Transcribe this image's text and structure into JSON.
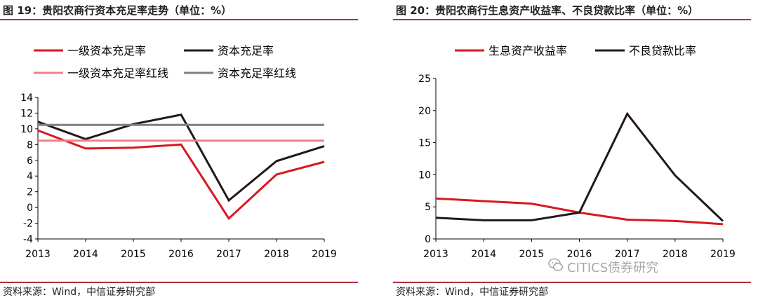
{
  "left": {
    "title": "图 19：贵阳农商行资本充足率走势（单位：%）",
    "source": "资料来源：Wind，中信证券研究部"
  },
  "right": {
    "title": "图 20：贵阳农商行生息资产收益率、不良贷款比率（单位：%）",
    "source": "资料来源：Wind，中信证券研究部"
  },
  "watermark": "CITICS债券研究",
  "chart_data": [
    {
      "type": "line",
      "title": "图 19：贵阳农商行资本充足率走势（单位：%）",
      "x": [
        "2013",
        "2014",
        "2015",
        "2016",
        "2017",
        "2018",
        "2019"
      ],
      "ylim": [
        -4,
        14
      ],
      "yticks": [
        -4,
        -2,
        0,
        2,
        4,
        6,
        8,
        10,
        12,
        14
      ],
      "legend_position": "top",
      "series": [
        {
          "name": "一级资本充足率",
          "color": "#d7191f",
          "values": [
            9.8,
            7.5,
            7.6,
            8.0,
            -1.4,
            4.2,
            5.8
          ]
        },
        {
          "name": "资本充足率",
          "color": "#231815",
          "values": [
            10.9,
            8.7,
            10.6,
            11.8,
            0.9,
            5.9,
            7.8
          ]
        },
        {
          "name": "一级资本充足率红线",
          "color": "#f08083",
          "values": [
            8.5,
            8.5,
            8.5,
            8.5,
            8.5,
            8.5,
            8.5
          ]
        },
        {
          "name": "资本充足率红线",
          "color": "#7f7f7f",
          "values": [
            10.5,
            10.5,
            10.5,
            10.5,
            10.5,
            10.5,
            10.5
          ]
        }
      ]
    },
    {
      "type": "line",
      "title": "图 20：贵阳农商行生息资产收益率、不良贷款比率（单位：%）",
      "x": [
        "2013",
        "2014",
        "2015",
        "2016",
        "2017",
        "2018",
        "2019"
      ],
      "ylim": [
        0,
        25
      ],
      "yticks": [
        0,
        5,
        10,
        15,
        20,
        25
      ],
      "legend_position": "top",
      "series": [
        {
          "name": "生息资产收益率",
          "color": "#d7191f",
          "values": [
            6.3,
            5.9,
            5.5,
            4.1,
            3.0,
            2.8,
            2.3
          ]
        },
        {
          "name": "不良贷款比率",
          "color": "#231815",
          "values": [
            3.3,
            2.9,
            2.9,
            4.1,
            19.5,
            9.9,
            2.8
          ]
        }
      ]
    }
  ]
}
